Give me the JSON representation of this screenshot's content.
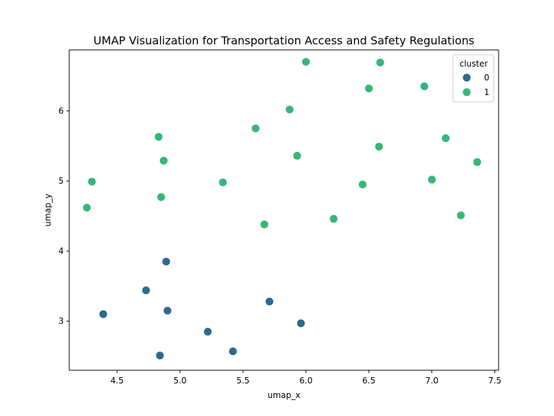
{
  "chart_data": {
    "type": "scatter",
    "title": "UMAP Visualization for Transportation Access and Safety Regulations",
    "xlabel": "umap_x",
    "ylabel": "umap_y",
    "xlim": [
      4.12,
      7.53
    ],
    "ylim": [
      2.3,
      6.87
    ],
    "xticks": [
      4.5,
      5.0,
      5.5,
      6.0,
      6.5,
      7.0,
      7.5
    ],
    "xtick_labels": [
      "4.5",
      "5.0",
      "5.5",
      "6.0",
      "6.5",
      "7.0",
      "7.5"
    ],
    "yticks": [
      3,
      4,
      5,
      6
    ],
    "ytick_labels": [
      "3",
      "4",
      "5",
      "6"
    ],
    "grid": false,
    "legend": {
      "title": "cluster",
      "placement": "top-right"
    },
    "series": [
      {
        "name": "0",
        "color": "#2d6a8e",
        "points": [
          [
            4.89,
            3.85
          ],
          [
            4.73,
            3.44
          ],
          [
            4.39,
            3.1
          ],
          [
            4.9,
            3.15
          ],
          [
            5.22,
            2.85
          ],
          [
            4.84,
            2.51
          ],
          [
            5.42,
            2.57
          ],
          [
            5.71,
            3.28
          ],
          [
            5.96,
            2.97
          ]
        ]
      },
      {
        "name": "1",
        "color": "#35b779",
        "points": [
          [
            6.0,
            6.7
          ],
          [
            6.59,
            6.69
          ],
          [
            6.5,
            6.32
          ],
          [
            6.94,
            6.35
          ],
          [
            5.87,
            6.02
          ],
          [
            5.6,
            5.75
          ],
          [
            4.83,
            5.63
          ],
          [
            7.11,
            5.61
          ],
          [
            6.58,
            5.49
          ],
          [
            5.93,
            5.36
          ],
          [
            4.87,
            5.29
          ],
          [
            7.36,
            5.27
          ],
          [
            4.3,
            4.99
          ],
          [
            5.34,
            4.98
          ],
          [
            6.45,
            4.95
          ],
          [
            7.0,
            5.02
          ],
          [
            4.85,
            4.77
          ],
          [
            4.26,
            4.62
          ],
          [
            7.23,
            4.51
          ],
          [
            6.22,
            4.46
          ],
          [
            5.67,
            4.38
          ]
        ]
      }
    ]
  }
}
